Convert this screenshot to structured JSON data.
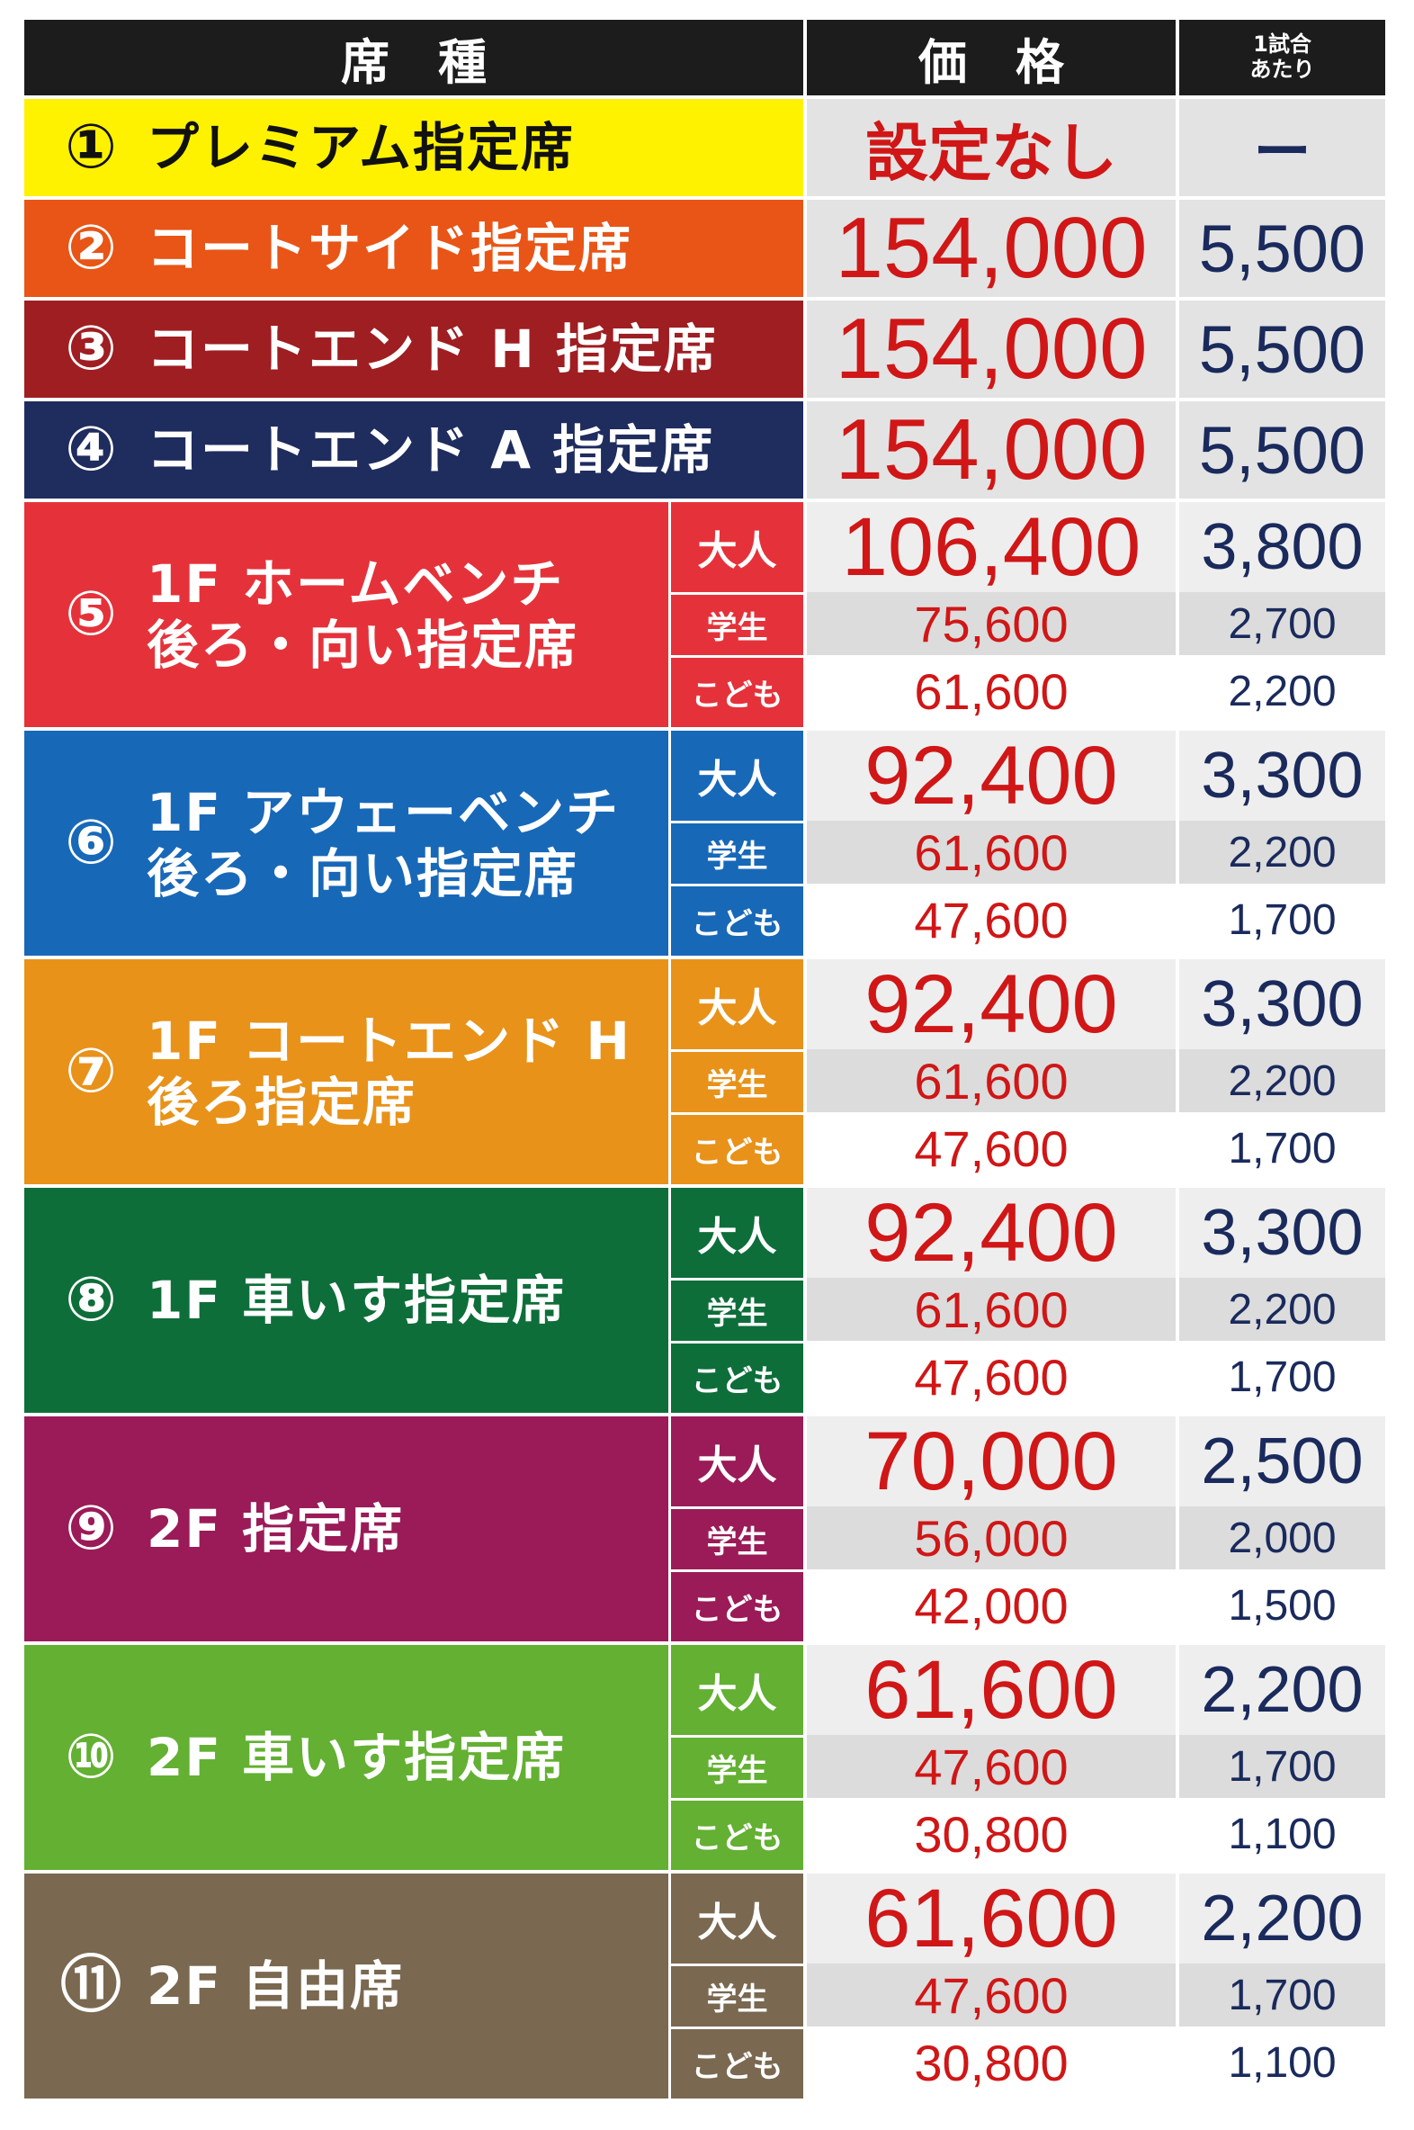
{
  "header": {
    "seat_type": "席　種",
    "price": "価　格",
    "per_game_line1": "1試合",
    "per_game_line2": "あたり"
  },
  "rows": [
    {
      "num": "①",
      "name": "プレミアム指定席",
      "color": "#fff200",
      "text_color": "#111111",
      "price": "設定なし",
      "per_game": "ー"
    },
    {
      "num": "②",
      "name": "コートサイド指定席",
      "color": "#e85516",
      "price": "154,000",
      "per_game": "5,500"
    },
    {
      "num": "③",
      "name": "コートエンド H 指定席",
      "color": "#9e1e22",
      "price": "154,000",
      "per_game": "5,500"
    },
    {
      "num": "④",
      "name": "コートエンド A 指定席",
      "color": "#1f2c5e",
      "price": "154,000",
      "per_game": "5,500"
    }
  ],
  "groups": [
    {
      "num": "⑤",
      "name": "1F ホームベンチ\n後ろ・向い指定席",
      "color": "#e5323a",
      "tiers": [
        "大人",
        "学生",
        "こども"
      ],
      "prices": [
        "106,400",
        "75,600",
        "61,600"
      ],
      "per_game": [
        "3,800",
        "2,700",
        "2,200"
      ]
    },
    {
      "num": "⑥",
      "name": "1F アウェーベンチ\n後ろ・向い指定席",
      "color": "#1868b8",
      "tiers": [
        "大人",
        "学生",
        "こども"
      ],
      "prices": [
        "92,400",
        "61,600",
        "47,600"
      ],
      "per_game": [
        "3,300",
        "2,200",
        "1,700"
      ]
    },
    {
      "num": "⑦",
      "name": "1F コートエンド H\n後ろ指定席",
      "color": "#e8921a",
      "tiers": [
        "大人",
        "学生",
        "こども"
      ],
      "prices": [
        "92,400",
        "61,600",
        "47,600"
      ],
      "per_game": [
        "3,300",
        "2,200",
        "1,700"
      ]
    },
    {
      "num": "⑧",
      "name": "1F 車いす指定席",
      "color": "#0e6e3a",
      "tiers": [
        "大人",
        "学生",
        "こども"
      ],
      "prices": [
        "92,400",
        "61,600",
        "47,600"
      ],
      "per_game": [
        "3,300",
        "2,200",
        "1,700"
      ]
    },
    {
      "num": "⑨",
      "name": "2F 指定席",
      "color": "#9a1b58",
      "tiers": [
        "大人",
        "学生",
        "こども"
      ],
      "prices": [
        "70,000",
        "56,000",
        "42,000"
      ],
      "per_game": [
        "2,500",
        "2,000",
        "1,500"
      ]
    },
    {
      "num": "⑩",
      "name": "2F 車いす指定席",
      "color": "#63b032",
      "tiers": [
        "大人",
        "学生",
        "こども"
      ],
      "prices": [
        "61,600",
        "47,600",
        "30,800"
      ],
      "per_game": [
        "2,200",
        "1,700",
        "1,100"
      ]
    },
    {
      "num": "⑪",
      "name": "2F 自由席",
      "color": "#7a6850",
      "tiers": [
        "大人",
        "学生",
        "こども"
      ],
      "prices": [
        "61,600",
        "47,600",
        "30,800"
      ],
      "per_game": [
        "2,200",
        "1,700",
        "1,100"
      ]
    }
  ]
}
